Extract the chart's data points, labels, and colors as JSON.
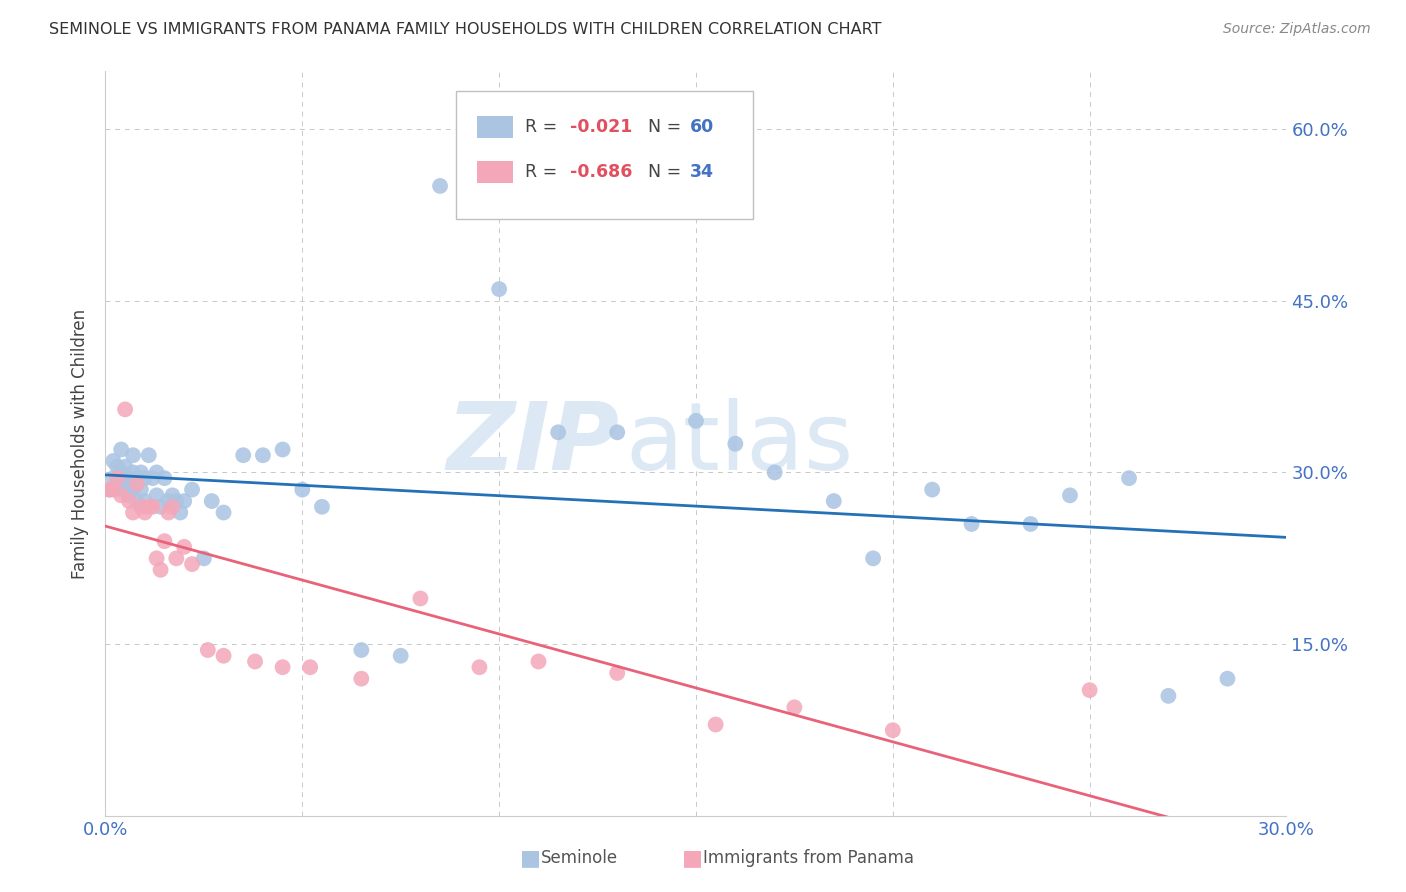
{
  "title": "SEMINOLE VS IMMIGRANTS FROM PANAMA FAMILY HOUSEHOLDS WITH CHILDREN CORRELATION CHART",
  "source": "Source: ZipAtlas.com",
  "ylabel": "Family Households with Children",
  "xlim": [
    0.0,
    0.3
  ],
  "ylim": [
    0.0,
    0.65
  ],
  "yticks": [
    0.0,
    0.15,
    0.3,
    0.45,
    0.6
  ],
  "ytick_labels": [
    "",
    "15.0%",
    "30.0%",
    "45.0%",
    "60.0%"
  ],
  "xticks": [
    0.0,
    0.05,
    0.1,
    0.15,
    0.2,
    0.25,
    0.3
  ],
  "xtick_labels": [
    "0.0%",
    "",
    "",
    "",
    "",
    "",
    "30.0%"
  ],
  "seminole_R": -0.021,
  "seminole_N": 60,
  "panama_R": -0.686,
  "panama_N": 34,
  "seminole_color": "#aac4e2",
  "panama_color": "#f4a7b9",
  "seminole_line_color": "#2471b8",
  "panama_line_color": "#e8637a",
  "background_color": "#ffffff",
  "grid_color": "#c8c8c8",
  "title_color": "#333333",
  "tick_color": "#4472c4",
  "watermark_zip": "ZIP",
  "watermark_atlas": "atlas",
  "watermark_color": "#dce8f4",
  "legend_r1": "R = -0.021",
  "legend_n1": "N = 60",
  "legend_r2": "R = -0.686",
  "legend_n2": "N = 34",
  "seminole_x": [
    0.001,
    0.002,
    0.002,
    0.003,
    0.003,
    0.004,
    0.004,
    0.004,
    0.005,
    0.005,
    0.005,
    0.006,
    0.006,
    0.007,
    0.007,
    0.007,
    0.008,
    0.008,
    0.009,
    0.009,
    0.01,
    0.01,
    0.011,
    0.012,
    0.013,
    0.013,
    0.014,
    0.015,
    0.016,
    0.017,
    0.018,
    0.019,
    0.02,
    0.022,
    0.025,
    0.027,
    0.03,
    0.035,
    0.04,
    0.045,
    0.05,
    0.055,
    0.065,
    0.075,
    0.085,
    0.1,
    0.115,
    0.13,
    0.15,
    0.16,
    0.17,
    0.185,
    0.195,
    0.21,
    0.22,
    0.235,
    0.245,
    0.26,
    0.27,
    0.285
  ],
  "seminole_y": [
    0.285,
    0.295,
    0.31,
    0.29,
    0.305,
    0.285,
    0.3,
    0.32,
    0.285,
    0.295,
    0.305,
    0.28,
    0.295,
    0.285,
    0.3,
    0.315,
    0.275,
    0.295,
    0.285,
    0.3,
    0.275,
    0.295,
    0.315,
    0.295,
    0.28,
    0.3,
    0.27,
    0.295,
    0.275,
    0.28,
    0.275,
    0.265,
    0.275,
    0.285,
    0.225,
    0.275,
    0.265,
    0.315,
    0.315,
    0.32,
    0.285,
    0.27,
    0.145,
    0.14,
    0.55,
    0.46,
    0.335,
    0.335,
    0.345,
    0.325,
    0.3,
    0.275,
    0.225,
    0.285,
    0.255,
    0.255,
    0.28,
    0.295,
    0.105,
    0.12
  ],
  "panama_x": [
    0.001,
    0.002,
    0.003,
    0.004,
    0.005,
    0.006,
    0.007,
    0.008,
    0.009,
    0.01,
    0.011,
    0.012,
    0.013,
    0.014,
    0.015,
    0.016,
    0.017,
    0.018,
    0.02,
    0.022,
    0.026,
    0.03,
    0.038,
    0.045,
    0.052,
    0.065,
    0.08,
    0.095,
    0.11,
    0.13,
    0.155,
    0.175,
    0.2,
    0.25
  ],
  "panama_y": [
    0.285,
    0.285,
    0.295,
    0.28,
    0.355,
    0.275,
    0.265,
    0.29,
    0.27,
    0.265,
    0.27,
    0.27,
    0.225,
    0.215,
    0.24,
    0.265,
    0.27,
    0.225,
    0.235,
    0.22,
    0.145,
    0.14,
    0.135,
    0.13,
    0.13,
    0.12,
    0.19,
    0.13,
    0.135,
    0.125,
    0.08,
    0.095,
    0.075,
    0.11
  ]
}
